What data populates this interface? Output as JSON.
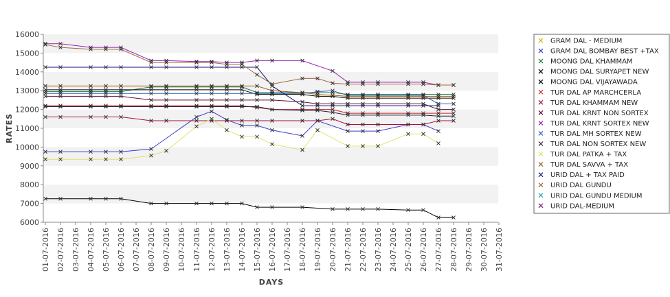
{
  "chart_data": {
    "type": "line",
    "title": "",
    "xlabel": "DAYS",
    "ylabel": "RATES",
    "ylim": [
      6000,
      16000
    ],
    "yticks": [
      6000,
      7000,
      8000,
      9000,
      10000,
      11000,
      12000,
      13000,
      14000,
      15000,
      16000
    ],
    "grid": "alternating horizontal bands",
    "legend_position": "right",
    "x": [
      "01-07-2016",
      "02-07-2016",
      "03-07-2016",
      "04-07-2016",
      "05-07-2016",
      "06-07-2016",
      "07-07-2016",
      "08-07-2016",
      "09-07-2016",
      "10-07-2016",
      "11-07-2016",
      "12-07-2016",
      "13-07-2016",
      "14-07-2016",
      "15-07-2016",
      "16-07-2016",
      "17-07-2016",
      "18-07-2016",
      "19-07-2016",
      "20-07-2016",
      "21-07-2016",
      "22-07-2016",
      "23-07-2016",
      "24-07-2016",
      "25-07-2016",
      "26-07-2016",
      "27-07-2016",
      "28-07-2016",
      "29-07-2016",
      "30-07-2016",
      "31-07-2016"
    ],
    "series": [
      {
        "name": "GRAM DAL - MEDIUM",
        "color": "#c8b400",
        "values": [
          null,
          null,
          null,
          null,
          null,
          null,
          null,
          null,
          null,
          null,
          null,
          null,
          null,
          null,
          null,
          null,
          null,
          null,
          null,
          null,
          null,
          null,
          null,
          null,
          null,
          null,
          null,
          null,
          null,
          null,
          null
        ]
      },
      {
        "name": "GRAM DAL BOMBAY BEST +TAX",
        "color": "#3b3bcc",
        "values": [
          9750,
          9750,
          null,
          9750,
          9750,
          9750,
          null,
          9900,
          null,
          null,
          11600,
          11900,
          11450,
          11150,
          11150,
          10900,
          null,
          10600,
          11400,
          null,
          10850,
          10850,
          10850,
          null,
          11200,
          11200,
          10850,
          null,
          null,
          null,
          null
        ]
      },
      {
        "name": "MOONG DAL KHAMMAM",
        "color": "#1a7a40",
        "values": [
          12950,
          12950,
          null,
          12950,
          12950,
          12950,
          null,
          13200,
          13200,
          null,
          13200,
          13200,
          13200,
          13200,
          12900,
          12900,
          null,
          12900,
          12900,
          12900,
          12800,
          12800,
          12800,
          null,
          12800,
          12800,
          12800,
          12800,
          null,
          null,
          null
        ]
      },
      {
        "name": "MOONG DAL SURYAPET NEW",
        "color": "#000000",
        "values": [
          13050,
          13050,
          null,
          13050,
          13050,
          13050,
          null,
          13050,
          13050,
          null,
          13050,
          13050,
          13050,
          13050,
          12800,
          12800,
          null,
          12800,
          12700,
          12700,
          12600,
          12600,
          12600,
          null,
          12600,
          12600,
          12600,
          12600,
          null,
          null,
          null
        ]
      },
      {
        "name": "MOONG DAL VIJAYAWADA",
        "color": "#000000",
        "values": [
          7250,
          7250,
          null,
          7250,
          7250,
          7250,
          null,
          7000,
          7000,
          null,
          7000,
          7000,
          7000,
          7000,
          6800,
          6800,
          null,
          6800,
          null,
          6700,
          6700,
          6700,
          6700,
          null,
          6650,
          6650,
          6250,
          6250,
          null,
          null,
          null
        ]
      },
      {
        "name": "TUR DAL AP MARCHCERLA",
        "color": "#cc2020",
        "values": [
          12200,
          12200,
          null,
          12200,
          12200,
          12200,
          null,
          12200,
          12200,
          null,
          12200,
          12200,
          12200,
          12200,
          12100,
          12000,
          null,
          12000,
          12000,
          12000,
          11800,
          11800,
          11800,
          null,
          11800,
          11800,
          11800,
          11800,
          null,
          null,
          null
        ]
      },
      {
        "name": "TUR DAL KHAMMAM NEW",
        "color": "#a01040",
        "values": [
          11600,
          11600,
          null,
          11600,
          11600,
          11600,
          null,
          11400,
          11400,
          null,
          11400,
          11400,
          11400,
          11400,
          11400,
          11400,
          null,
          11400,
          11400,
          11500,
          11200,
          11200,
          11200,
          null,
          11200,
          11200,
          11400,
          11400,
          null,
          null,
          null
        ]
      },
      {
        "name": "TUR DAL KRNT NON SORTEX",
        "color": "#5a1030",
        "values": [
          12700,
          12700,
          null,
          12700,
          12700,
          12700,
          null,
          12500,
          12500,
          null,
          12500,
          12500,
          12500,
          12500,
          12500,
          12500,
          null,
          12400,
          12300,
          12300,
          12300,
          12300,
          12300,
          null,
          12300,
          12300,
          12000,
          12000,
          null,
          null,
          null
        ]
      },
      {
        "name": "TUR DAL KRNT SORTEX NEW",
        "color": "#9a20b0",
        "values": [
          15500,
          15500,
          null,
          15300,
          15300,
          15300,
          null,
          14600,
          14600,
          null,
          14550,
          14550,
          14500,
          14500,
          14600,
          14600,
          null,
          14600,
          null,
          14050,
          13450,
          13450,
          13450,
          null,
          13450,
          13450,
          13300,
          13300,
          null,
          null,
          null
        ]
      },
      {
        "name": "TUR DAL MH SORTEX NEW",
        "color": "#2a60b0",
        "values": [
          12850,
          12850,
          null,
          12850,
          12850,
          12850,
          null,
          12850,
          12850,
          null,
          12850,
          12850,
          12850,
          12850,
          12850,
          12850,
          null,
          12850,
          12950,
          13000,
          12750,
          12750,
          12750,
          null,
          12750,
          12750,
          12300,
          12300,
          null,
          null,
          null
        ]
      },
      {
        "name": "TUR DAL NON SORTEX NEW",
        "color": "#202040",
        "values": [
          12150,
          12150,
          null,
          12150,
          12150,
          12150,
          null,
          12150,
          12150,
          null,
          12150,
          12150,
          12150,
          12150,
          12150,
          12000,
          null,
          11950,
          11950,
          11850,
          11700,
          11700,
          11700,
          null,
          11700,
          11700,
          11650,
          11650,
          null,
          null,
          null
        ]
      },
      {
        "name": "TUR DAL PATKA + TAX",
        "color": "#e0e070",
        "values": [
          9350,
          9350,
          null,
          9350,
          9350,
          9350,
          null,
          9550,
          9800,
          null,
          11100,
          11500,
          10900,
          10550,
          10550,
          10150,
          null,
          9850,
          10900,
          null,
          10050,
          10050,
          10050,
          null,
          10700,
          10700,
          10200,
          null,
          null,
          null,
          null
        ]
      },
      {
        "name": "TUR DAL SAVVA + TAX",
        "color": "#a05a10",
        "values": [
          13250,
          13250,
          null,
          13250,
          13250,
          13250,
          null,
          13250,
          13250,
          null,
          13250,
          13250,
          13250,
          13250,
          13250,
          13000,
          null,
          12900,
          12800,
          12750,
          12700,
          12700,
          12700,
          null,
          12700,
          12700,
          12700,
          12700,
          null,
          null,
          null
        ]
      },
      {
        "name": "URID DAL + TAX PAID",
        "color": "#10107a",
        "values": [
          14250,
          14250,
          null,
          14250,
          14250,
          14250,
          null,
          14250,
          14250,
          null,
          14250,
          14250,
          14250,
          14250,
          14250,
          13250,
          null,
          12200,
          12200,
          12200,
          12200,
          12200,
          12200,
          null,
          12200,
          12200,
          12200,
          null,
          null,
          null,
          null
        ]
      },
      {
        "name": "URID DAL GUNDU",
        "color": "#a06a40",
        "values": [
          15450,
          15300,
          null,
          15200,
          15200,
          15200,
          null,
          14500,
          14500,
          null,
          14500,
          14500,
          14400,
          14400,
          13850,
          13350,
          null,
          13650,
          13650,
          13400,
          13350,
          13350,
          13350,
          null,
          13350,
          13350,
          13300,
          13300,
          null,
          null,
          null
        ]
      },
      {
        "name": "URID DAL GUNDU MEDIUM",
        "color": "#20a0a0",
        "values": [
          null,
          null,
          null,
          null,
          null,
          null,
          null,
          null,
          null,
          null,
          null,
          null,
          null,
          null,
          null,
          null,
          null,
          null,
          null,
          null,
          null,
          null,
          null,
          null,
          null,
          null,
          null,
          null,
          null,
          null,
          null
        ]
      },
      {
        "name": "URID DAL-MEDIUM",
        "color": "#702070",
        "values": [
          null,
          null,
          null,
          null,
          null,
          null,
          null,
          null,
          null,
          null,
          null,
          null,
          null,
          null,
          null,
          null,
          null,
          null,
          null,
          null,
          null,
          null,
          null,
          null,
          null,
          null,
          null,
          null,
          null,
          null,
          null
        ]
      }
    ]
  }
}
